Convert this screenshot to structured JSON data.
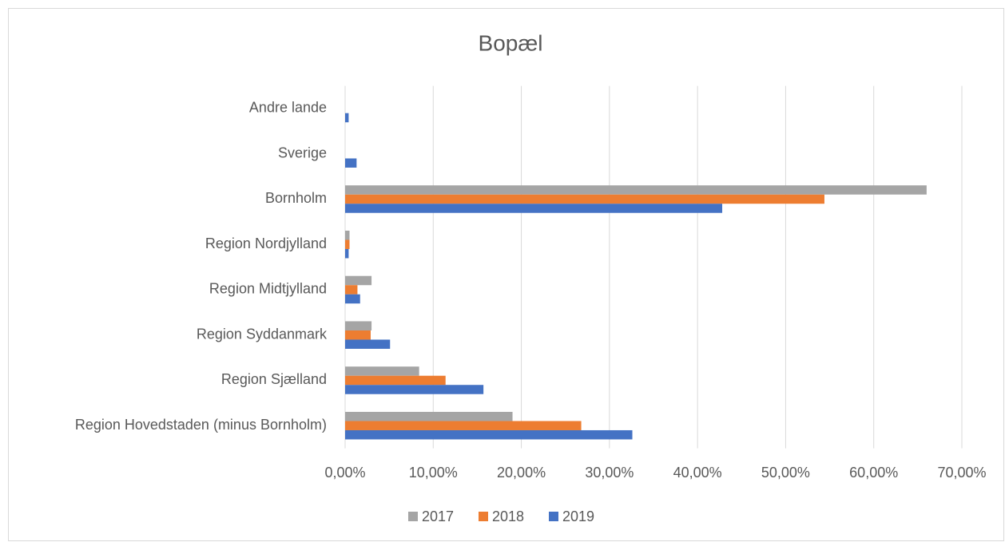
{
  "chart_data": {
    "type": "barh",
    "title": "Bopæl",
    "categories": [
      "Region Hovedstaden (minus Bornholm)",
      "Region Sjælland",
      "Region Syddanmark",
      "Region Midtjylland",
      "Region Nordjylland",
      "Bornholm",
      "Sverige",
      "Andre lande"
    ],
    "series": [
      {
        "name": "2017",
        "color": "#a5a5a5",
        "values": [
          19.0,
          8.4,
          3.0,
          3.0,
          0.5,
          66.0,
          0,
          0
        ]
      },
      {
        "name": "2018",
        "color": "#ed7d31",
        "values": [
          26.8,
          11.4,
          2.9,
          1.4,
          0.5,
          54.4,
          0,
          0
        ]
      },
      {
        "name": "2019",
        "color": "#4472c4",
        "values": [
          32.6,
          15.7,
          5.1,
          1.7,
          0.4,
          42.8,
          1.3,
          0.4
        ]
      }
    ],
    "xlim": [
      0,
      70
    ],
    "xticks": [
      {
        "value": 0,
        "label": "0,00%"
      },
      {
        "value": 10,
        "label": "10,00%"
      },
      {
        "value": 20,
        "label": "20,00%"
      },
      {
        "value": 30,
        "label": "30,00%"
      },
      {
        "value": 40,
        "label": "40,00%"
      },
      {
        "value": 50,
        "label": "50,00%"
      },
      {
        "value": 60,
        "label": "60,00%"
      },
      {
        "value": 70,
        "label": "70,00%"
      }
    ],
    "grid": true,
    "legend": "bottom"
  }
}
